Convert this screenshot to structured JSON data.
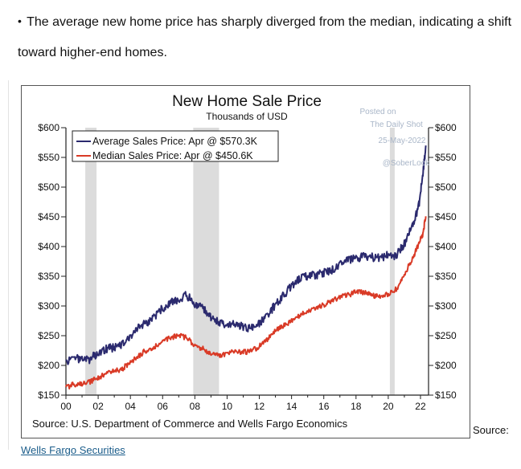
{
  "intro": {
    "bullet": "•",
    "line1": "The average new home price has sharply diverged from the median, indicating a shift",
    "line2": "toward higher-end homes."
  },
  "chart_data": {
    "type": "line",
    "title": "New Home Sale Price",
    "subtitle": "Thousands of USD",
    "x_ticks": [
      "00",
      "02",
      "04",
      "06",
      "08",
      "10",
      "12",
      "14",
      "16",
      "18",
      "20",
      "22"
    ],
    "y_ticks_left": [
      "$150",
      "$200",
      "$250",
      "$300",
      "$350",
      "$400",
      "$450",
      "$500",
      "$550",
      "$600"
    ],
    "y_ticks_right": [
      "$150",
      "$200",
      "$250",
      "$300",
      "$350",
      "$400",
      "$450",
      "$500",
      "$550",
      "$600"
    ],
    "ylim": [
      150,
      600
    ],
    "xlim": [
      2000.0,
      2022.5
    ],
    "grid": false,
    "legend_position": "top-left",
    "recessions": [
      [
        2001.2,
        2001.9
      ],
      [
        2007.9,
        2009.5
      ],
      [
        2020.1,
        2020.4
      ]
    ],
    "series": [
      {
        "name": "Average Sales Price: Apr @ $570.3K",
        "color": "#2b2a6e",
        "points": [
          [
            2000.0,
            205
          ],
          [
            2000.5,
            212
          ],
          [
            2001.0,
            209
          ],
          [
            2001.5,
            210
          ],
          [
            2002.0,
            222
          ],
          [
            2002.5,
            228
          ],
          [
            2003.0,
            230
          ],
          [
            2003.5,
            236
          ],
          [
            2004.0,
            250
          ],
          [
            2004.5,
            265
          ],
          [
            2005.0,
            272
          ],
          [
            2005.5,
            282
          ],
          [
            2006.0,
            296
          ],
          [
            2006.5,
            306
          ],
          [
            2007.0,
            312
          ],
          [
            2007.5,
            318
          ],
          [
            2008.0,
            304
          ],
          [
            2008.5,
            296
          ],
          [
            2009.0,
            280
          ],
          [
            2009.5,
            272
          ],
          [
            2010.0,
            268
          ],
          [
            2010.5,
            270
          ],
          [
            2011.0,
            264
          ],
          [
            2011.5,
            262
          ],
          [
            2012.0,
            270
          ],
          [
            2012.5,
            284
          ],
          [
            2013.0,
            302
          ],
          [
            2013.5,
            318
          ],
          [
            2014.0,
            334
          ],
          [
            2014.5,
            345
          ],
          [
            2015.0,
            350
          ],
          [
            2015.5,
            352
          ],
          [
            2016.0,
            356
          ],
          [
            2016.5,
            360
          ],
          [
            2017.0,
            370
          ],
          [
            2017.5,
            376
          ],
          [
            2018.0,
            380
          ],
          [
            2018.5,
            384
          ],
          [
            2019.0,
            382
          ],
          [
            2019.5,
            380
          ],
          [
            2020.0,
            386
          ],
          [
            2020.5,
            385
          ],
          [
            2021.0,
            405
          ],
          [
            2021.5,
            435
          ],
          [
            2021.9,
            470
          ],
          [
            2022.15,
            520
          ],
          [
            2022.33,
            570
          ]
        ]
      },
      {
        "name": "Median Sales Price: Apr @ $450.6K",
        "color": "#d93a26",
        "points": [
          [
            2000.0,
            163
          ],
          [
            2000.5,
            168
          ],
          [
            2001.0,
            170
          ],
          [
            2001.5,
            172
          ],
          [
            2002.0,
            180
          ],
          [
            2002.5,
            186
          ],
          [
            2003.0,
            190
          ],
          [
            2003.5,
            194
          ],
          [
            2004.0,
            206
          ],
          [
            2004.5,
            216
          ],
          [
            2005.0,
            226
          ],
          [
            2005.5,
            232
          ],
          [
            2006.0,
            240
          ],
          [
            2006.5,
            246
          ],
          [
            2007.0,
            250
          ],
          [
            2007.5,
            246
          ],
          [
            2008.0,
            234
          ],
          [
            2008.5,
            228
          ],
          [
            2009.0,
            218
          ],
          [
            2009.5,
            216
          ],
          [
            2010.0,
            220
          ],
          [
            2010.5,
            224
          ],
          [
            2011.0,
            222
          ],
          [
            2011.5,
            224
          ],
          [
            2012.0,
            232
          ],
          [
            2012.5,
            244
          ],
          [
            2013.0,
            258
          ],
          [
            2013.5,
            266
          ],
          [
            2014.0,
            276
          ],
          [
            2014.5,
            284
          ],
          [
            2015.0,
            292
          ],
          [
            2015.5,
            296
          ],
          [
            2016.0,
            302
          ],
          [
            2016.5,
            308
          ],
          [
            2017.0,
            314
          ],
          [
            2017.5,
            318
          ],
          [
            2018.0,
            324
          ],
          [
            2018.5,
            322
          ],
          [
            2019.0,
            318
          ],
          [
            2019.5,
            316
          ],
          [
            2020.0,
            320
          ],
          [
            2020.5,
            328
          ],
          [
            2021.0,
            352
          ],
          [
            2021.5,
            380
          ],
          [
            2021.9,
            405
          ],
          [
            2022.15,
            422
          ],
          [
            2022.33,
            451
          ]
        ]
      }
    ],
    "source": "Source: U.S. Department of Commerce and Wells Fargo Economics"
  },
  "watermark": {
    "line1": "Posted on",
    "line2": "The Daily Shot",
    "line3": "25-May-2022",
    "line4": "@SoberLook"
  },
  "source_right": "Source:",
  "footer_link": "Wells Fargo Securities"
}
